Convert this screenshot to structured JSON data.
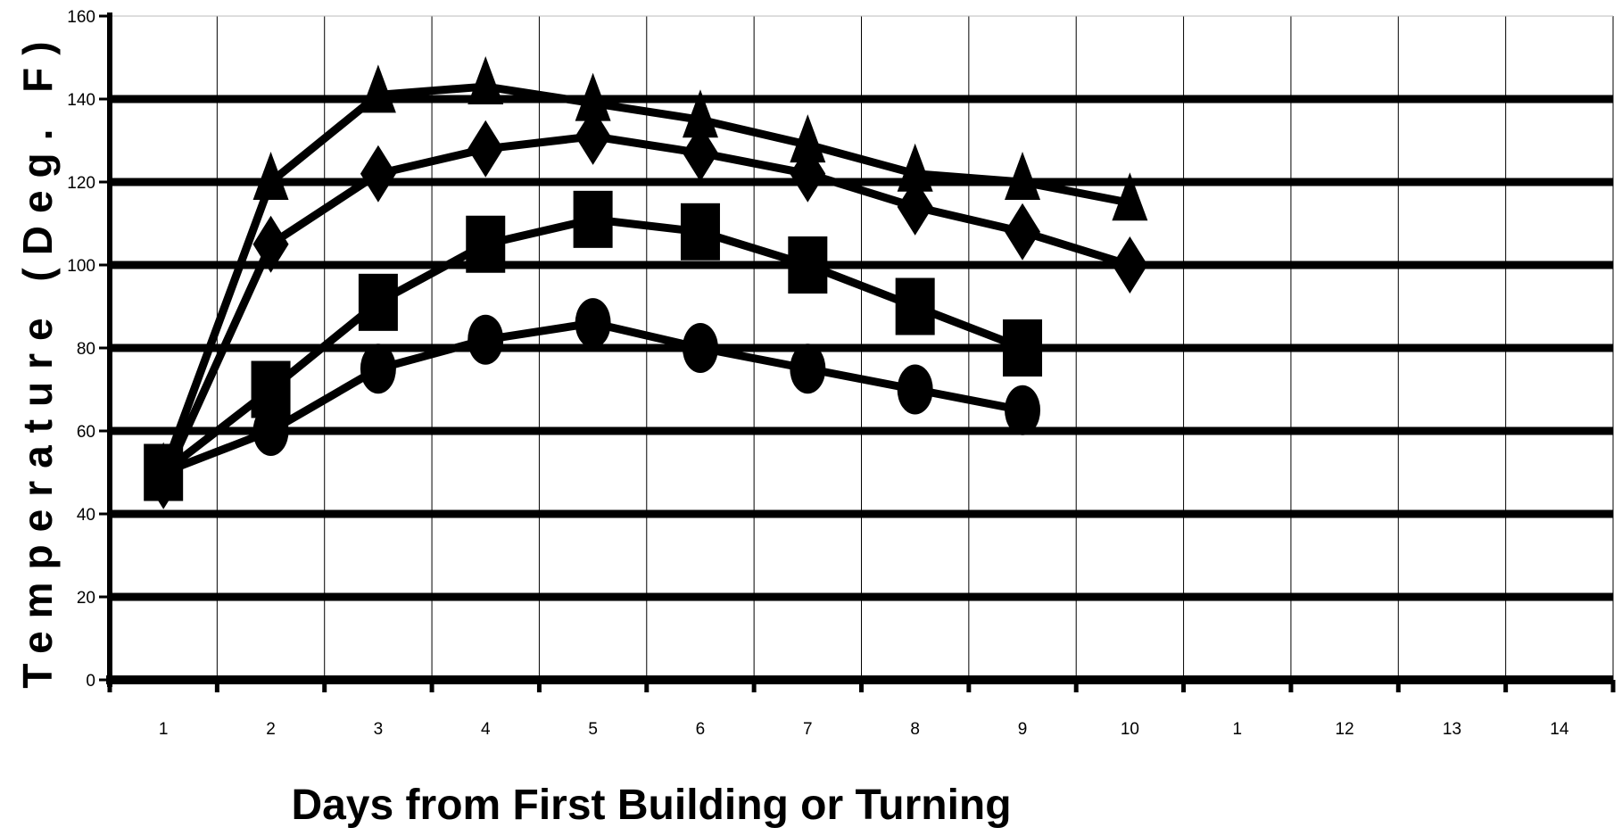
{
  "chart_data": {
    "type": "line",
    "title": "",
    "xlabel": "Days from First Building or Turning",
    "ylabel": "Temperature (Deg. F)",
    "ylim": [
      0,
      160
    ],
    "yticks": [
      0,
      20,
      40,
      60,
      80,
      100,
      120,
      140,
      160
    ],
    "xtick_labels": [
      "1",
      "2",
      "3",
      "4",
      "5",
      "6",
      "7",
      "8",
      "9",
      "10",
      "1",
      "12",
      "13",
      "14"
    ],
    "grid": {
      "horizontal": true,
      "vertical": true
    },
    "legend": "none",
    "series": [
      {
        "marker": "triangle",
        "x": [
          1,
          2,
          3,
          4,
          5,
          6,
          7,
          8,
          9,
          10
        ],
        "values": [
          50,
          120,
          141,
          143,
          139,
          135,
          129,
          122,
          120,
          115
        ]
      },
      {
        "marker": "diamond",
        "x": [
          1,
          2,
          3,
          4,
          5,
          6,
          7,
          8,
          9,
          10
        ],
        "values": [
          48,
          105,
          122,
          128,
          131,
          127,
          122,
          114,
          108,
          100
        ]
      },
      {
        "marker": "square",
        "x": [
          1,
          2,
          3,
          4,
          5,
          6,
          7,
          8,
          9
        ],
        "values": [
          50,
          70,
          91,
          105,
          111,
          108,
          100,
          90,
          80
        ]
      },
      {
        "marker": "circle",
        "x": [
          1,
          2,
          3,
          4,
          5,
          6,
          7,
          8,
          9
        ],
        "values": [
          50,
          60,
          75,
          82,
          86,
          80,
          75,
          70,
          65
        ]
      }
    ]
  }
}
